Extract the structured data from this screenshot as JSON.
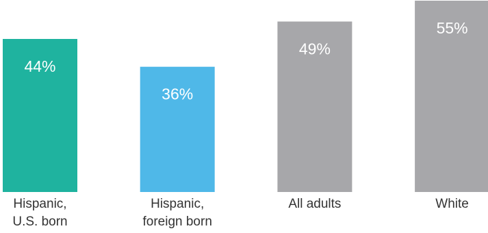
{
  "chart_data": {
    "type": "bar",
    "categories": [
      [
        "Hispanic,",
        "U.S. born"
      ],
      [
        "Hispanic,",
        "foreign born"
      ],
      [
        "All adults"
      ],
      [
        "White"
      ]
    ],
    "values": [
      44,
      36,
      49,
      55
    ],
    "value_labels": [
      "44%",
      "36%",
      "49%",
      "55%"
    ],
    "colors": [
      "#1fb39f",
      "#4fb8e8",
      "#a7a7aa",
      "#a7a7aa"
    ],
    "ylim": [
      0,
      55
    ],
    "grid": false,
    "legend": "none"
  }
}
